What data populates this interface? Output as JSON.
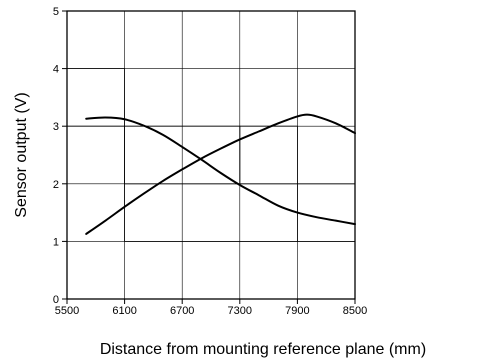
{
  "chart_data": {
    "type": "line",
    "title": "",
    "xlabel": "Distance from mounting reference plane (mm)",
    "ylabel": "Sensor output (V)",
    "xlim": [
      5500,
      8500
    ],
    "ylim": [
      0,
      5
    ],
    "x_ticks": [
      5500,
      6100,
      6700,
      7300,
      7900,
      8500
    ],
    "y_ticks": [
      0,
      1,
      2,
      3,
      4,
      5
    ],
    "grid": true,
    "series": [
      {
        "x": [
          5700,
          5900,
          6100,
          6300,
          6500,
          6700,
          6900,
          7100,
          7300,
          7500,
          7700,
          7900,
          8100,
          8300,
          8500
        ],
        "y": [
          3.13,
          3.15,
          3.12,
          3.01,
          2.85,
          2.64,
          2.42,
          2.19,
          1.98,
          1.8,
          1.62,
          1.5,
          1.42,
          1.36,
          1.3
        ]
      },
      {
        "x": [
          5700,
          5900,
          6100,
          6300,
          6500,
          6700,
          6900,
          7100,
          7300,
          7500,
          7700,
          7900,
          8000,
          8100,
          8300,
          8500
        ],
        "y": [
          1.13,
          1.36,
          1.6,
          1.83,
          2.05,
          2.25,
          2.44,
          2.61,
          2.77,
          2.91,
          3.05,
          3.17,
          3.2,
          3.17,
          3.05,
          2.88
        ]
      }
    ],
    "reference_steps": [
      {
        "x": [
          5500,
          6100,
          6100,
          8500
        ],
        "y": [
          4,
          4,
          1,
          1
        ]
      },
      {
        "x": [
          5500,
          6100,
          6100,
          7300,
          7300,
          7900,
          7900,
          8500
        ],
        "y": [
          3,
          3,
          2,
          2,
          3,
          3,
          2,
          2
        ]
      },
      {
        "x": [
          6100,
          7300,
          7300,
          7900,
          7900
        ],
        "y": [
          3,
          3,
          2,
          2,
          1
        ]
      }
    ],
    "colors": {
      "curve": "#000000",
      "grid": "#000000",
      "axis": "#000000"
    }
  }
}
